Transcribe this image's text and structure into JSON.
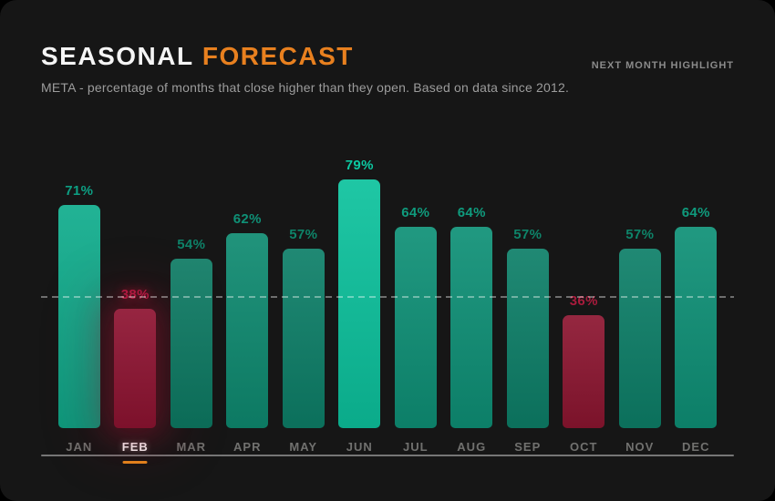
{
  "header": {
    "title_primary": "SEASONAL",
    "title_accent": "FORECAST",
    "subtitle": "META - percentage of months that close higher than they open. Based on data since 2012.",
    "corner_note": "NEXT MONTH HIGHLIGHT"
  },
  "colors": {
    "page_background": "#000000",
    "card_background": "#161616",
    "title_primary": "#f5f5f5",
    "title_accent": "#e8801f",
    "subtitle": "#9c9c9c",
    "corner_note": "#8b8b8b",
    "axis_line": "#8f8f8f",
    "reference_line": "rgba(255,255,255,0.38)",
    "month_label": "#71716f",
    "highlight_month_label": "#ffffff",
    "highlight_underline": "#e8891d",
    "highlight_glow": "rgba(150,17,46,0.40)"
  },
  "chart_data": {
    "type": "bar",
    "title": "SEASONAL FORECAST",
    "subtitle": "META - percentage of months that close higher than they open. Based on data since 2012.",
    "categories": [
      "JAN",
      "FEB",
      "MAR",
      "APR",
      "MAY",
      "JUN",
      "JUL",
      "AUG",
      "SEP",
      "OCT",
      "NOV",
      "DEC"
    ],
    "values": [
      71,
      38,
      54,
      62,
      57,
      79,
      64,
      64,
      57,
      36,
      57,
      64
    ],
    "value_suffix": "%",
    "bar_colors": [
      "#0fac8c",
      "#8e1331",
      "#0d7a63",
      "#0e8a70",
      "#0d7f68",
      "#0cc29d",
      "#0e9076",
      "#0e9076",
      "#0d7f68",
      "#8c1530",
      "#0d7f68",
      "#0e9076"
    ],
    "value_label_colors": [
      "#0d9f83",
      "#b01940",
      "#0e8168",
      "#0f9076",
      "#0e8469",
      "#0cc9a2",
      "#0f9b7d",
      "#0f9b7d",
      "#0e8469",
      "#a81b3c",
      "#0e8469",
      "#0f9b7d"
    ],
    "highlighted_category": "FEB",
    "highlight_index": 1,
    "reference_line_percent": 42,
    "reference_line_style": "dashed",
    "y_axis_labels_visible": false,
    "legend": "none"
  }
}
